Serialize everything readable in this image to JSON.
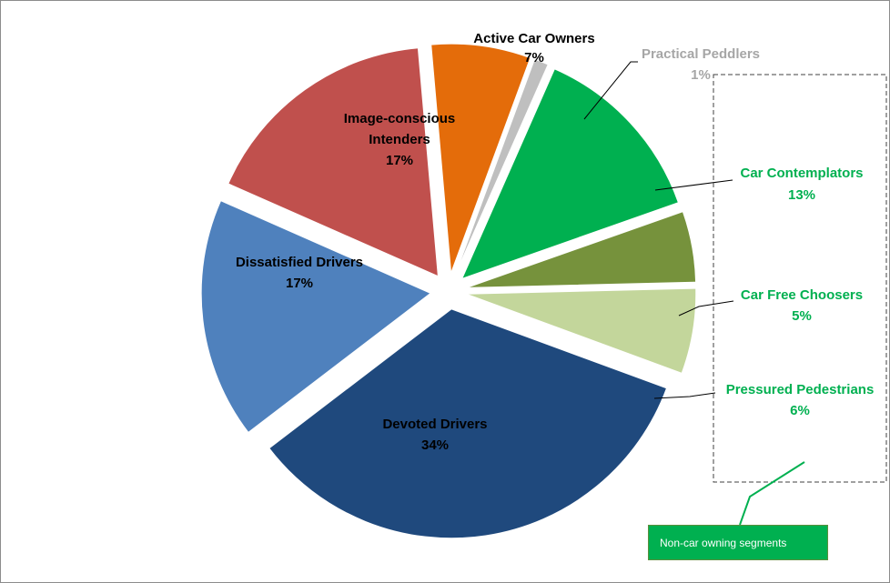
{
  "chart_data": {
    "type": "pie",
    "title": "",
    "slices": [
      {
        "name": "Active Car Owners",
        "value": 7,
        "percent_label": "7%",
        "color": "#e46c0a",
        "label_color": "#000000",
        "exploded": true
      },
      {
        "name": "Practical Peddlers",
        "value": 1,
        "percent_label": "1%",
        "color": "#bfbfbf",
        "label_color": "#a6a6a6",
        "exploded": true
      },
      {
        "name": "Car Contemplators",
        "value": 13,
        "percent_label": "13%",
        "color": "#00b050",
        "label_color": "#00b050",
        "exploded": true
      },
      {
        "name": "Car Free Choosers",
        "value": 5,
        "percent_label": "5%",
        "color": "#76923c",
        "label_color": "#00b050",
        "exploded": true
      },
      {
        "name": "Pressured Pedestrians",
        "value": 6,
        "percent_label": "6%",
        "color": "#c3d69b",
        "label_color": "#00b050",
        "exploded": true
      },
      {
        "name": "Devoted Drivers",
        "value": 34,
        "percent_label": "34%",
        "color": "#1f497d",
        "label_color": "#000000",
        "exploded": true
      },
      {
        "name": "Dissatisfied Drivers",
        "value": 17,
        "percent_label": "17%",
        "color": "#4f81bd",
        "label_color": "#000000",
        "exploded": true
      },
      {
        "name": "Image-conscious Intenders",
        "value": 17,
        "percent_label": "17%",
        "color": "#c0504d",
        "label_color": "#000000",
        "exploded": true
      }
    ],
    "callout": {
      "text": "Non-car owning segments",
      "color": "#00b050"
    }
  }
}
